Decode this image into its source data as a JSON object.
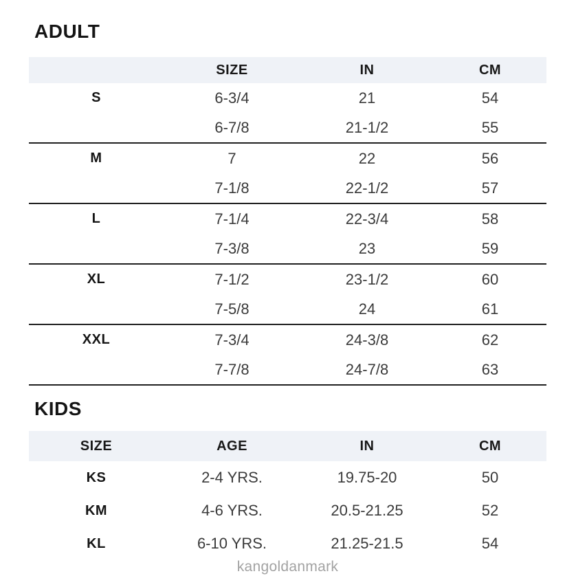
{
  "sections": {
    "adult": {
      "title": "ADULT",
      "columns": {
        "size": "SIZE",
        "inches": "IN",
        "cm": "CM"
      },
      "rows": [
        {
          "label": "S",
          "size": "6-3/4",
          "in": "21",
          "cm": "54"
        },
        {
          "label": "",
          "size": "6-7/8",
          "in": "21-1/2",
          "cm": "55"
        },
        {
          "label": "M",
          "size": "7",
          "in": "22",
          "cm": "56"
        },
        {
          "label": "",
          "size": "7-1/8",
          "in": "22-1/2",
          "cm": "57"
        },
        {
          "label": "L",
          "size": "7-1/4",
          "in": "22-3/4",
          "cm": "58"
        },
        {
          "label": "",
          "size": "7-3/8",
          "in": "23",
          "cm": "59"
        },
        {
          "label": "XL",
          "size": "7-1/2",
          "in": "23-1/2",
          "cm": "60"
        },
        {
          "label": "",
          "size": "7-5/8",
          "in": "24",
          "cm": "61"
        },
        {
          "label": "XXL",
          "size": "7-3/4",
          "in": "24-3/8",
          "cm": "62"
        },
        {
          "label": "",
          "size": "7-7/8",
          "in": "24-7/8",
          "cm": "63"
        }
      ]
    },
    "kids": {
      "title": "KIDS",
      "columns": {
        "size": "SIZE",
        "age": "AGE",
        "inches": "IN",
        "cm": "CM"
      },
      "rows": [
        {
          "size": "KS",
          "age": "2-4 YRS.",
          "in": "19.75-20",
          "cm": "50"
        },
        {
          "size": "KM",
          "age": "4-6 YRS.",
          "in": "20.5-21.25",
          "cm": "52"
        },
        {
          "size": "KL",
          "age": "6-10 YRS.",
          "in": "21.25-21.5",
          "cm": "54"
        }
      ]
    }
  },
  "footer": {
    "watermark": "kangoldanmark"
  },
  "colors": {
    "header_band": "#eff2f7",
    "heading_text": "#151515",
    "data_text": "#3a3a3a",
    "divider": "#1f1f1f",
    "watermark": "#a2a2a2"
  }
}
